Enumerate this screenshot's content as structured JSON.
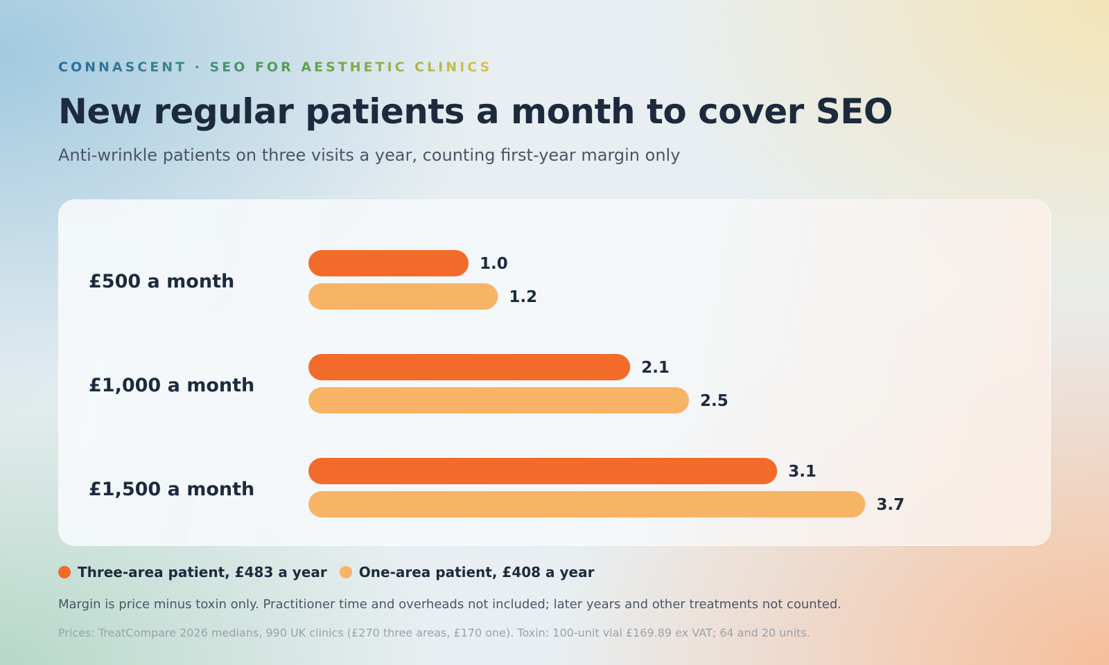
{
  "header": {
    "eyebrow": "CONNASCENT · SEO FOR AESTHETIC CLINICS",
    "title": "New regular patients a month to cover SEO",
    "subtitle": "Anti-wrinkle patients on three visits a year, counting first-year margin only"
  },
  "chart_data": {
    "type": "bar",
    "orientation": "horizontal",
    "categories": [
      "£500 a month",
      "£1,000 a month",
      "£1,500 a month"
    ],
    "series": [
      {
        "name": "Three-area patient, £483 a year",
        "values": [
          1.0,
          2.1,
          3.1
        ],
        "labels": [
          "1.0",
          "2.1",
          "3.1"
        ],
        "color": "#f26b2a"
      },
      {
        "name": "One-area patient, £408 a year",
        "values": [
          1.2,
          2.5,
          3.7
        ],
        "labels": [
          "1.2",
          "2.5",
          "3.7"
        ],
        "color": "#f7b366"
      }
    ],
    "xlim": [
      0,
      4
    ],
    "grid": false,
    "legend_position": "bottom-left"
  },
  "footer": {
    "note": "Margin is price minus toxin only. Practitioner time and overheads not included; later years and other treatments not counted.",
    "source": "Prices: TreatCompare 2026 medians, 990 UK clinics (£270 three areas, £170 one). Toxin: 100-unit vial £169.89 ex VAT; 64 and 20 units."
  }
}
